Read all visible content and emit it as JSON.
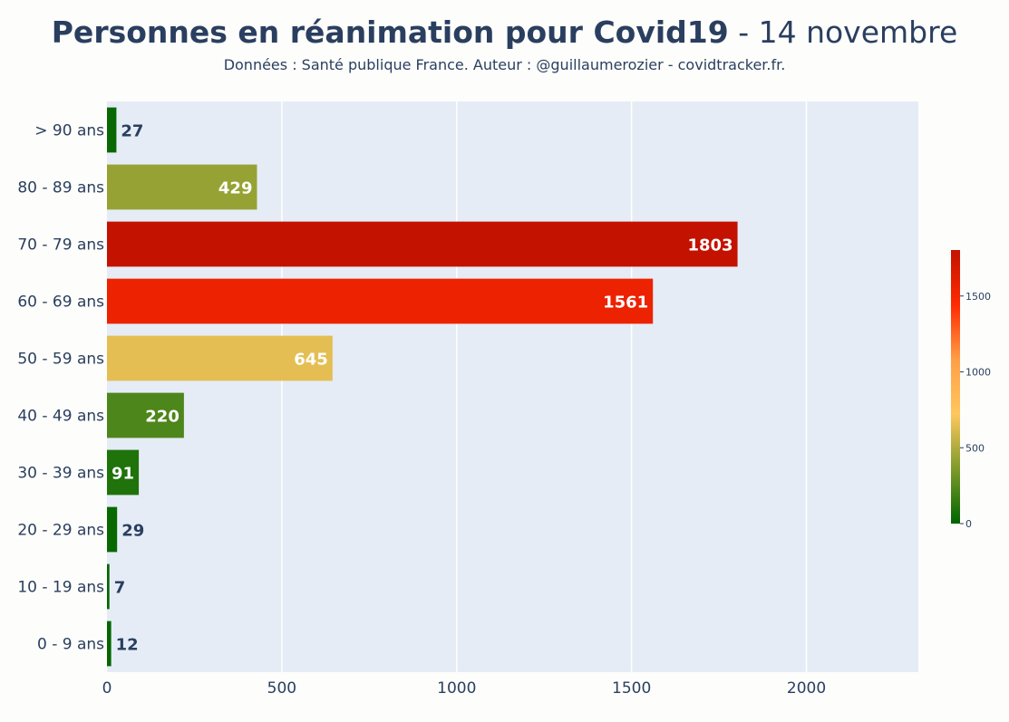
{
  "title_main": "Personnes en réanimation pour Covid19",
  "title_date": " - 14 novembre",
  "subtitle": "Données : Santé publique France. Auteur : @guillaumerozier - covidtracker.fr.",
  "colors": {
    "plot_bg": "#e5ecf6",
    "grid": "#ffffff",
    "axis_text": "#2a3f5f",
    "colorscale": [
      "#006400",
      "#7e9b2a",
      "#ffc75e",
      "#ff9e47",
      "#ff2a00",
      "#c41200"
    ]
  },
  "chart_data": {
    "type": "bar",
    "orientation": "horizontal",
    "title": "Personnes en réanimation pour Covid19 - 14 novembre",
    "categories": [
      "> 90 ans",
      "80 - 89 ans",
      "70 - 79 ans",
      "60 - 69 ans",
      "50 - 59 ans",
      "40 - 49 ans",
      "30 - 39 ans",
      "20 - 29 ans",
      "10 - 19 ans",
      "0 - 9 ans"
    ],
    "values": [
      27,
      429,
      1803,
      1561,
      645,
      220,
      91,
      29,
      7,
      12
    ],
    "xlim": [
      0,
      2320
    ],
    "x_ticks": [
      0,
      500,
      1000,
      1500,
      2000
    ],
    "grid": true,
    "colorbar": {
      "range": [
        0,
        1803
      ],
      "ticks": [
        0,
        500,
        1000,
        1500
      ],
      "placement": "right"
    }
  }
}
